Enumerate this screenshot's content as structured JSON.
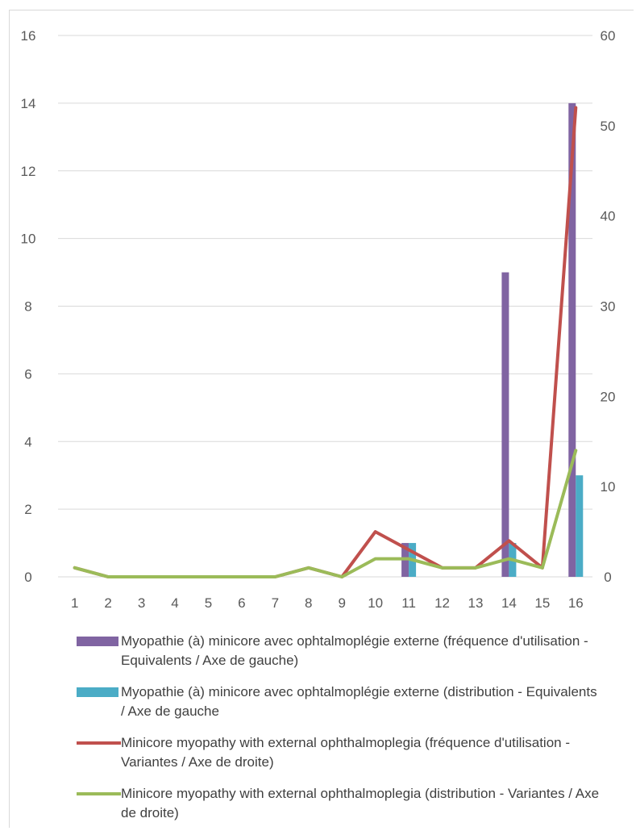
{
  "chart_data": {
    "type": "bar+line",
    "categories": [
      "1",
      "2",
      "3",
      "4",
      "5",
      "6",
      "7",
      "8",
      "9",
      "10",
      "11",
      "12",
      "13",
      "14",
      "15",
      "16"
    ],
    "y_left": {
      "ylim": [
        0,
        16
      ],
      "ticks": [
        "0",
        "2",
        "4",
        "6",
        "8",
        "10",
        "12",
        "14",
        "16"
      ]
    },
    "y_right": {
      "ylim": [
        0,
        60
      ],
      "ticks": [
        "0",
        "10",
        "20",
        "30",
        "40",
        "50",
        "60"
      ]
    },
    "grid": true,
    "legend_position": "bottom",
    "series": [
      {
        "name": "Myopathie (à) minicore avec ophtalmoplégie externe (fréquence d'utilisation - Equivalents / Axe de gauche)",
        "kind": "bar",
        "axis": "left",
        "color": "#8064a2",
        "values": [
          0,
          0,
          0,
          0,
          0,
          0,
          0,
          0,
          0,
          0,
          1,
          0,
          0,
          9,
          0,
          14
        ]
      },
      {
        "name": "Myopathie (à) minicore avec ophtalmoplégie externe (distribution - Equivalents  / Axe de gauche",
        "kind": "bar",
        "axis": "left",
        "color": "#4bacc6",
        "values": [
          0,
          0,
          0,
          0,
          0,
          0,
          0,
          0,
          0,
          0,
          1,
          0,
          0,
          1,
          0,
          3
        ]
      },
      {
        "name": "Minicore myopathy with external ophthalmoplegia (fréquence d'utilisation - Variantes / Axe de droite)",
        "kind": "line",
        "axis": "right",
        "color": "#c0504d",
        "values": [
          1,
          0,
          0,
          0,
          0,
          0,
          0,
          1,
          0,
          5,
          3,
          1,
          1,
          4,
          1,
          52
        ]
      },
      {
        "name": "Minicore myopathy with external ophthalmoplegia (distribution - Variantes / Axe de droite)",
        "kind": "line",
        "axis": "right",
        "color": "#9bbb59",
        "values": [
          1,
          0,
          0,
          0,
          0,
          0,
          0,
          1,
          0,
          2,
          2,
          1,
          1,
          2,
          1,
          14
        ]
      }
    ]
  }
}
